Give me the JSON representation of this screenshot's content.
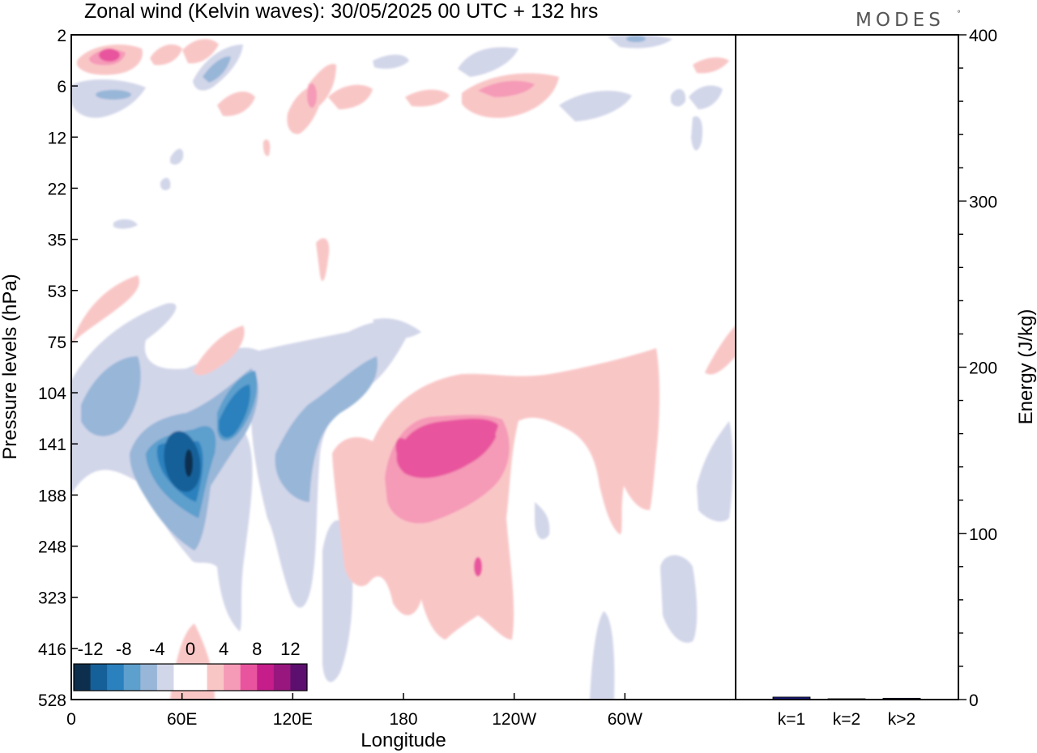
{
  "header": {
    "title": "Zonal wind (Kelvin waves):  30/05/2025  00 UTC  + 132 hrs",
    "brand": "MODES",
    "brand_mark": "°"
  },
  "chart_data": [
    {
      "type": "heatmap",
      "title": "Zonal wind (Kelvin waves):  30/05/2025  00 UTC  + 132 hrs",
      "xlabel": "Longitude",
      "ylabel": "Pressure levels (hPa)",
      "x_tick_labels": [
        "0",
        "60E",
        "120E",
        "180",
        "120W",
        "60W"
      ],
      "x_tick_degrees": [
        0,
        60,
        120,
        180,
        240,
        300
      ],
      "xlim_degrees": [
        0,
        360
      ],
      "y_tick_labels": [
        "2",
        "6",
        "12",
        "22",
        "35",
        "53",
        "75",
        "104",
        "141",
        "188",
        "248",
        "323",
        "416",
        "528"
      ],
      "y_axis": "pressure levels, top to bottom",
      "colorbar": {
        "tick_labels": [
          "-12",
          "-8",
          "-4",
          "0",
          "4",
          "8",
          "12"
        ],
        "levels": [
          -14,
          -12,
          -10,
          -8,
          -6,
          -4,
          -2,
          0,
          2,
          4,
          6,
          8,
          10,
          12,
          14
        ],
        "colors": [
          "#0d2f4d",
          "#16609a",
          "#2a81bd",
          "#5d9fcd",
          "#98b6d8",
          "#d2d6e9",
          "#ffffff",
          "#ffffff",
          "#f9c6c6",
          "#f59ab7",
          "#e8559e",
          "#c51d8a",
          "#98177f",
          "#5c0f6e"
        ],
        "placement": "bottom-left"
      },
      "features": [
        {
          "name": "negative core",
          "lon": 63,
          "level": "141",
          "value": -13
        },
        {
          "name": "negative band",
          "lon": 95,
          "level": "104",
          "value": -10
        },
        {
          "name": "negative band",
          "lon": 120,
          "level": "141",
          "value": -6
        },
        {
          "name": "positive core",
          "lon": 200,
          "level": "141",
          "value": 8
        },
        {
          "name": "positive region",
          "lon": 210,
          "level": "188",
          "value": 4
        }
      ]
    },
    {
      "type": "bar",
      "ylabel": "Energy (J/kg)",
      "categories": [
        "k=1",
        "k=2",
        "k>2"
      ],
      "values": [
        1.5,
        0.5,
        0.8
      ],
      "ylim": [
        0,
        400
      ],
      "y_ticks": [
        "0",
        "100",
        "200",
        "300",
        "400"
      ],
      "bar_color": "#1a1a7a"
    }
  ]
}
